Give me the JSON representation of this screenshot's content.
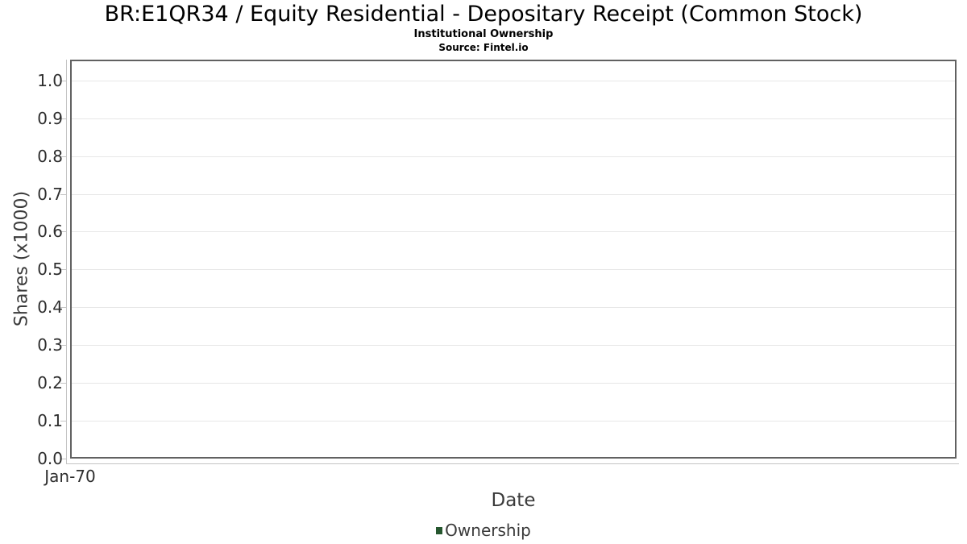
{
  "title": "BR:E1QR34 / Equity Residential - Depositary Receipt (Common Stock)",
  "subtitle": "Institutional Ownership",
  "source": "Source: Fintel.io",
  "chart_data": {
    "type": "line",
    "title": "BR:E1QR34 / Equity Residential - Depositary Receipt (Common Stock)",
    "subtitle": "Institutional Ownership",
    "source_note": "Source: Fintel.io",
    "xlabel": "Date",
    "ylabel": "Shares (x1000)",
    "x_tick_labels": [
      "Jan-70"
    ],
    "y_ticks": [
      0.0,
      0.1,
      0.2,
      0.3,
      0.4,
      0.5,
      0.6,
      0.7,
      0.8,
      0.9,
      1.0
    ],
    "ylim": [
      0,
      1.055
    ],
    "grid": true,
    "legend_position": "bottom",
    "series": [
      {
        "name": "Ownership",
        "color": "#26572f",
        "values": []
      }
    ]
  },
  "colors": {
    "legend_marker": "#26572f",
    "gridline": "#e7e7e7",
    "plot_border": "#616161",
    "axis_line": "#c4c4c4",
    "tick_text": "#2e2e2e",
    "axis_title_text": "#3a3a3a",
    "title_text": "#000000"
  }
}
